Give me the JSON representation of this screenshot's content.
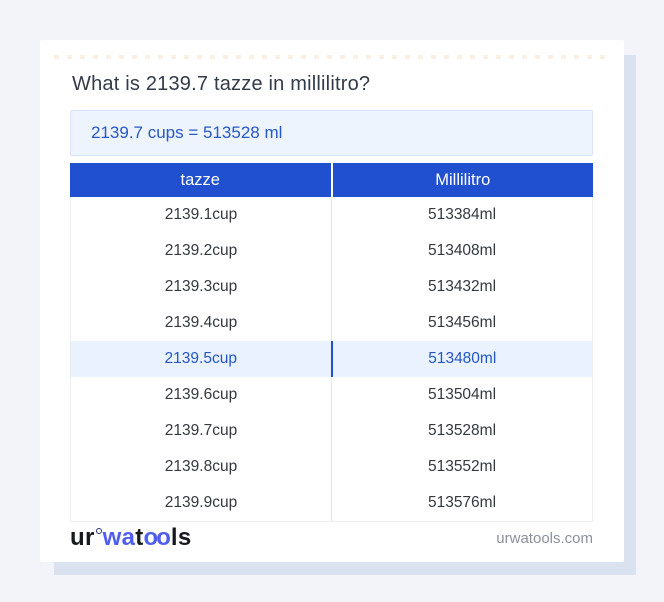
{
  "page": {
    "title": "What is 2139.7 tazze in millilitro?",
    "result": "2139.7 cups = 513528 ml"
  },
  "table": {
    "headers": {
      "cup": "tazze",
      "ml": "Millilitro"
    },
    "highlighted_row_index": 4,
    "rows": [
      {
        "cup": "2139.1cup",
        "ml": "513384ml"
      },
      {
        "cup": "2139.2cup",
        "ml": "513408ml"
      },
      {
        "cup": "2139.3cup",
        "ml": "513432ml"
      },
      {
        "cup": "2139.4cup",
        "ml": "513456ml"
      },
      {
        "cup": "2139.5cup",
        "ml": "513480ml"
      },
      {
        "cup": "2139.6cup",
        "ml": "513504ml"
      },
      {
        "cup": "2139.7cup",
        "ml": "513528ml"
      },
      {
        "cup": "2139.8cup",
        "ml": "513552ml"
      },
      {
        "cup": "2139.9cup",
        "ml": "513576ml"
      }
    ]
  },
  "footer": {
    "logo": {
      "ur": "ur",
      "wa": "wa",
      "t": "t",
      "oo": "oo",
      "ls": "ls"
    },
    "domain": "urwatools.com"
  },
  "colors": {
    "page_background": "#f2f4f9",
    "card_shadow": "#dbe2ef",
    "table_header_blue": "#2050cf",
    "accent_text_blue": "#2456c4",
    "highlight_row_background": "#e9f2fe",
    "result_box_background": "#edf4fd",
    "logo_blue": "#4f5ef0"
  }
}
